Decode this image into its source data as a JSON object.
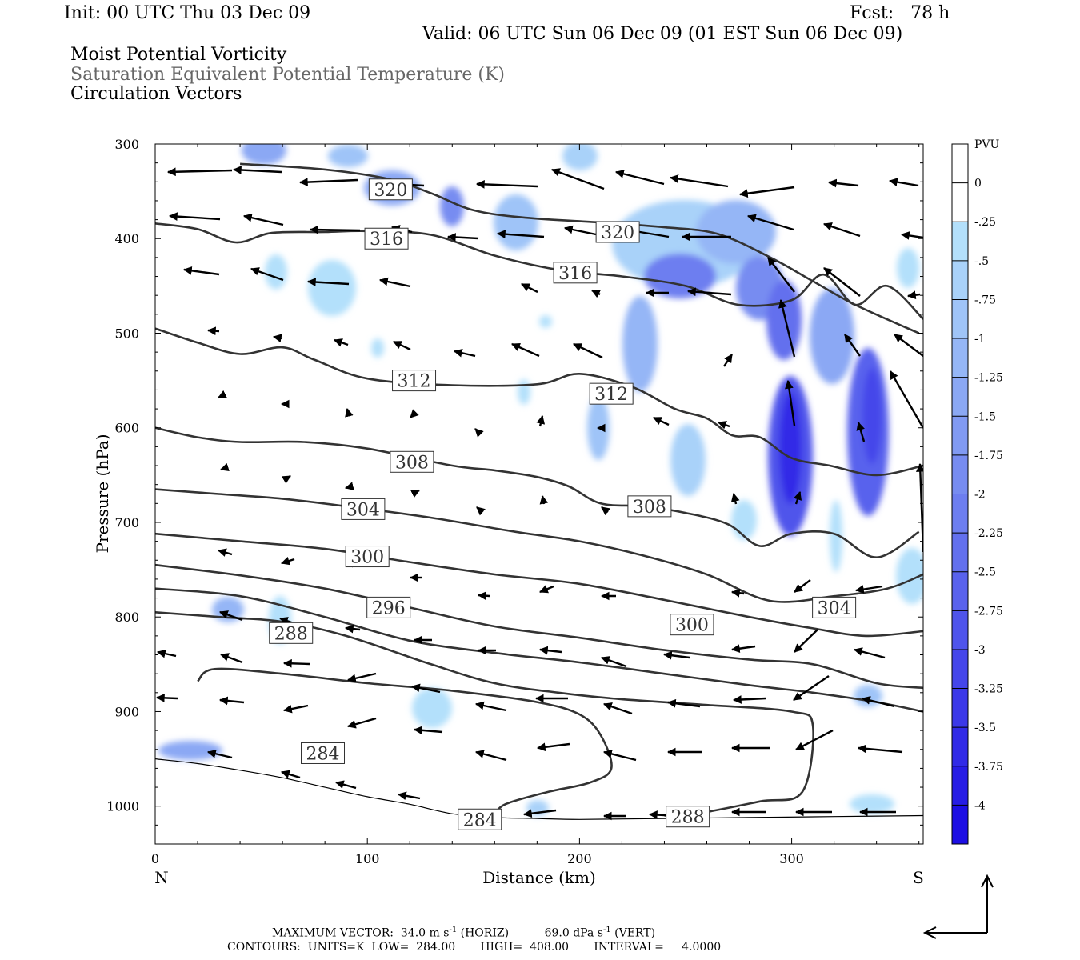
{
  "header": {
    "init": "Init: 00 UTC Thu 03 Dec 09",
    "fcst": "Fcst:   78 h",
    "valid": "Valid: 06 UTC Sun 06 Dec 09 (01 EST Sun 06 Dec 09)",
    "field1": "Moist Potential Vorticity",
    "field2": "Saturation Equivalent Potential Temperature (K)",
    "field3": "Circulation Vectors"
  },
  "chart_data": {
    "type": "cross-section",
    "xlabel": "Distance (km)",
    "ylabel": "Pressure (hPa)",
    "xlim": [
      0,
      362
    ],
    "ylim": [
      1040,
      300
    ],
    "x_ticks": [
      0,
      100,
      200,
      300
    ],
    "y_ticks": [
      300,
      400,
      500,
      600,
      700,
      800,
      900,
      1000
    ],
    "end_labels": {
      "left": "N",
      "right": "S"
    },
    "colorbar": {
      "unit": "PVU",
      "levels": [
        "0",
        "-.25",
        "-.5",
        "-.75",
        "-1",
        "-1.25",
        "-1.5",
        "-1.75",
        "-2",
        "-2.25",
        "-2.5",
        "-2.75",
        "-3",
        "-3.25",
        "-3.5",
        "-3.75",
        "-4"
      ],
      "colors": [
        "#ffffff",
        "#ffffff",
        "#b3e0fb",
        "#a9d2f9",
        "#9fc4f8",
        "#95b6f6",
        "#8ba8f4",
        "#819af3",
        "#778cf1",
        "#6d7ef0",
        "#6370ee",
        "#5962ed",
        "#4f54eb",
        "#4546ea",
        "#3b38e8",
        "#312ae7",
        "#271ce5",
        "#1d0ee4"
      ]
    },
    "contour_labels": [
      {
        "text": "320",
        "x": 111,
        "p": 348
      },
      {
        "text": "320",
        "x": 218,
        "p": 393
      },
      {
        "text": "316",
        "x": 109,
        "p": 400
      },
      {
        "text": "316",
        "x": 198,
        "p": 436
      },
      {
        "text": "312",
        "x": 122,
        "p": 550
      },
      {
        "text": "312",
        "x": 215,
        "p": 564
      },
      {
        "text": "308",
        "x": 121,
        "p": 636
      },
      {
        "text": "308",
        "x": 233,
        "p": 683
      },
      {
        "text": "304",
        "x": 98,
        "p": 686
      },
      {
        "text": "304",
        "x": 320,
        "p": 790
      },
      {
        "text": "300",
        "x": 100,
        "p": 736
      },
      {
        "text": "300",
        "x": 253,
        "p": 808
      },
      {
        "text": "296",
        "x": 110,
        "p": 790
      },
      {
        "text": "288",
        "x": 64,
        "p": 817
      },
      {
        "text": "284",
        "x": 79,
        "p": 944
      },
      {
        "text": "284",
        "x": 153,
        "p": 1014
      },
      {
        "text": "288",
        "x": 251,
        "p": 1011
      }
    ],
    "contours": [
      {
        "level": 320,
        "points": [
          [
            40,
            321
          ],
          [
            80,
            327
          ],
          [
            110,
            337
          ],
          [
            130,
            352
          ],
          [
            150,
            370
          ],
          [
            175,
            378
          ],
          [
            210,
            383
          ],
          [
            240,
            388
          ],
          [
            265,
            395
          ],
          [
            290,
            420
          ],
          [
            310,
            445
          ],
          [
            330,
            470
          ],
          [
            360,
            500
          ]
        ]
      },
      {
        "level": 316,
        "points": [
          [
            0,
            384
          ],
          [
            20,
            390
          ],
          [
            38,
            404
          ],
          [
            55,
            394
          ],
          [
            80,
            393
          ],
          [
            100,
            392
          ],
          [
            130,
            396
          ],
          [
            160,
            418
          ],
          [
            190,
            433
          ],
          [
            220,
            440
          ],
          [
            250,
            450
          ],
          [
            275,
            470
          ],
          [
            300,
            465
          ],
          [
            315,
            438
          ],
          [
            330,
            470
          ],
          [
            345,
            450
          ],
          [
            362,
            485
          ]
        ]
      },
      {
        "level": 312,
        "points": [
          [
            0,
            495
          ],
          [
            20,
            510
          ],
          [
            40,
            522
          ],
          [
            60,
            515
          ],
          [
            75,
            528
          ],
          [
            100,
            548
          ],
          [
            140,
            555
          ],
          [
            180,
            554
          ],
          [
            200,
            543
          ],
          [
            225,
            557
          ],
          [
            245,
            580
          ],
          [
            260,
            590
          ],
          [
            272,
            608
          ],
          [
            285,
            610
          ],
          [
            300,
            632
          ],
          [
            318,
            640
          ],
          [
            340,
            650
          ],
          [
            362,
            640
          ]
        ]
      },
      {
        "level": 308,
        "points": [
          [
            0,
            600
          ],
          [
            20,
            610
          ],
          [
            40,
            615
          ],
          [
            70,
            615
          ],
          [
            100,
            622
          ],
          [
            140,
            640
          ],
          [
            160,
            645
          ],
          [
            180,
            652
          ],
          [
            195,
            662
          ],
          [
            210,
            680
          ],
          [
            230,
            683
          ],
          [
            250,
            690
          ],
          [
            270,
            702
          ],
          [
            285,
            725
          ],
          [
            300,
            712
          ],
          [
            320,
            712
          ],
          [
            340,
            737
          ],
          [
            360,
            710
          ]
        ]
      },
      {
        "level": 304,
        "points": [
          [
            0,
            665
          ],
          [
            30,
            670
          ],
          [
            60,
            675
          ],
          [
            90,
            683
          ],
          [
            130,
            695
          ],
          [
            170,
            710
          ],
          [
            200,
            720
          ],
          [
            230,
            735
          ],
          [
            260,
            755
          ],
          [
            290,
            783
          ],
          [
            320,
            778
          ],
          [
            345,
            770
          ],
          [
            362,
            755
          ]
        ]
      },
      {
        "level": 300,
        "points": [
          [
            0,
            712
          ],
          [
            40,
            720
          ],
          [
            80,
            728
          ],
          [
            120,
            742
          ],
          [
            160,
            755
          ],
          [
            200,
            765
          ],
          [
            240,
            782
          ],
          [
            280,
            800
          ],
          [
            310,
            812
          ],
          [
            335,
            820
          ],
          [
            362,
            815
          ]
        ]
      },
      {
        "level": 296,
        "points": [
          [
            0,
            745
          ],
          [
            40,
            756
          ],
          [
            80,
            770
          ],
          [
            120,
            790
          ],
          [
            160,
            810
          ],
          [
            200,
            822
          ],
          [
            240,
            835
          ],
          [
            280,
            845
          ],
          [
            310,
            850
          ],
          [
            340,
            870
          ],
          [
            362,
            875
          ]
        ]
      },
      {
        "level": 292,
        "points": [
          [
            0,
            770
          ],
          [
            40,
            778
          ],
          [
            80,
            800
          ],
          [
            120,
            825
          ],
          [
            160,
            838
          ],
          [
            200,
            848
          ],
          [
            240,
            860
          ],
          [
            280,
            872
          ],
          [
            310,
            880
          ],
          [
            340,
            890
          ],
          [
            362,
            900
          ]
        ]
      },
      {
        "level": 288,
        "points": [
          [
            0,
            795
          ],
          [
            30,
            800
          ],
          [
            60,
            805
          ],
          [
            90,
            820
          ],
          [
            130,
            850
          ],
          [
            160,
            870
          ],
          [
            190,
            880
          ],
          [
            220,
            887
          ],
          [
            260,
            893
          ],
          [
            300,
            900
          ],
          [
            310,
            915
          ],
          [
            305,
            985
          ],
          [
            285,
            995
          ],
          [
            255,
            1008
          ],
          [
            240,
            1010
          ]
        ]
      },
      {
        "level": 284,
        "points": [
          [
            20,
            868
          ],
          [
            28,
            855
          ],
          [
            60,
            860
          ],
          [
            100,
            870
          ],
          [
            140,
            878
          ],
          [
            180,
            890
          ],
          [
            200,
            903
          ],
          [
            210,
            925
          ],
          [
            215,
            960
          ],
          [
            205,
            975
          ],
          [
            185,
            985
          ],
          [
            165,
            998
          ],
          [
            160,
            1010
          ]
        ]
      }
    ],
    "topography": [
      [
        0,
        950
      ],
      [
        20,
        955
      ],
      [
        40,
        962
      ],
      [
        60,
        970
      ],
      [
        80,
        980
      ],
      [
        100,
        990
      ],
      [
        120,
        998
      ],
      [
        140,
        1008
      ],
      [
        160,
        1012
      ],
      [
        180,
        1013
      ],
      [
        200,
        1014
      ],
      [
        240,
        1013
      ],
      [
        280,
        1012
      ],
      [
        320,
        1011
      ],
      [
        362,
        1010
      ]
    ],
    "footer": {
      "max_vector_label": "MAXIMUM VECTOR:",
      "horiz_value": "34.0",
      "horiz_unit": "m s",
      "horiz_tag": "(HORIZ)",
      "vert_value": "69.0",
      "vert_unit": "dPa s",
      "vert_tag": "(VERT)",
      "exponent": "-1",
      "contours_line": "CONTOURS:  UNITS=K  LOW=  284.00       HIGH=  408.00       INTERVAL=     4.0000"
    }
  }
}
